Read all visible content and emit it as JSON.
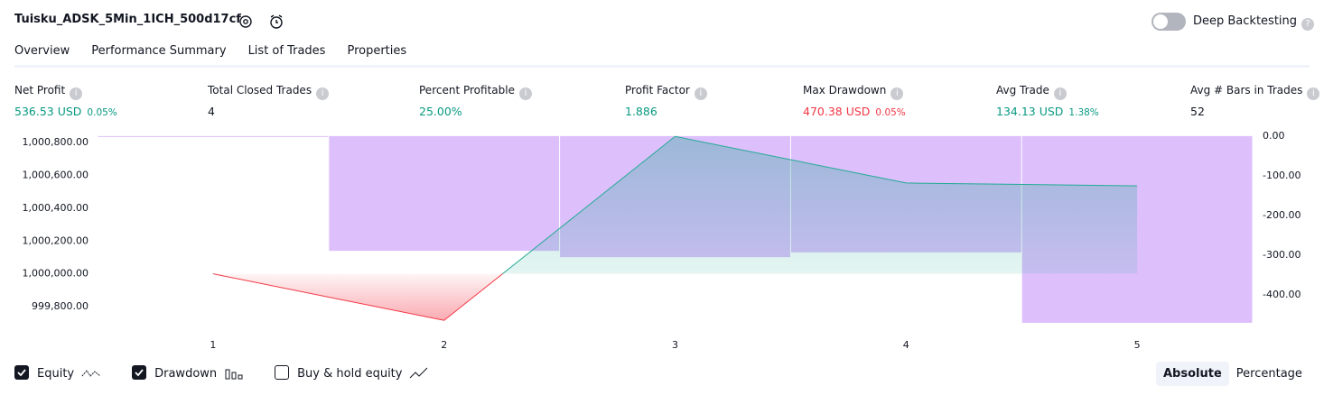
{
  "header": {
    "title": "Tuisku_ADSK_5Min_1ICH_500d17cf",
    "deep_backtesting": "Deep Backtesting",
    "deep_backtesting_on": false
  },
  "tabs": [
    "Overview",
    "Performance Summary",
    "List of Trades",
    "Properties"
  ],
  "active_tab": 0,
  "metrics": [
    {
      "label": "Net Profit",
      "value": "536.53 USD",
      "percent": "0.05%",
      "tone": "positive"
    },
    {
      "label": "Total Closed Trades",
      "value": "4",
      "tone": "neutral"
    },
    {
      "label": "Percent Profitable",
      "value": "25.00%",
      "tone": "positive"
    },
    {
      "label": "Profit Factor",
      "value": "1.886",
      "tone": "positive"
    },
    {
      "label": "Max Drawdown",
      "value": "470.38 USD",
      "percent": "0.05%",
      "tone": "negative"
    },
    {
      "label": "Avg Trade",
      "value": "134.13 USD",
      "percent": "1.38%",
      "tone": "positive"
    },
    {
      "label": "Avg # Bars in Trades",
      "value": "52",
      "tone": "neutral"
    }
  ],
  "chart_data": {
    "type": "combo",
    "categories": [
      "1",
      "2",
      "3",
      "4",
      "5"
    ],
    "series": [
      {
        "name": "Equity",
        "type": "line",
        "color": "#22ab94",
        "negative_color": "#f23645",
        "visible": true,
        "values": [
          1000000,
          999716,
          1000838,
          1000554,
          1000536.53
        ]
      },
      {
        "name": "Drawdown",
        "type": "bar",
        "axis": "y2",
        "color": "#d9b8fc",
        "visible": true,
        "values": [
          0,
          -289,
          -305,
          -293,
          -470.38
        ]
      }
    ],
    "buy_hold": {
      "name": "Buy & hold equity",
      "visible": false
    },
    "ylim": [
      999690,
      1000845
    ],
    "yticks": [
      {
        "value": 999800,
        "label": "999,800.00"
      },
      {
        "value": 1000000,
        "label": "1,000,000.00"
      },
      {
        "value": 1000200,
        "label": "1,000,200.00"
      },
      {
        "value": 1000400,
        "label": "1,000,400.00"
      },
      {
        "value": 1000600,
        "label": "1,000,600.00"
      },
      {
        "value": 1000800,
        "label": "1,000,800.00"
      }
    ],
    "y2lim": [
      -475,
      2
    ],
    "y2ticks": [
      {
        "value": 0,
        "label": "0.00"
      },
      {
        "value": -100,
        "label": "-100.00"
      },
      {
        "value": -200,
        "label": "-200.00"
      },
      {
        "value": -300,
        "label": "-300.00"
      },
      {
        "value": -400,
        "label": "-400.00"
      }
    ]
  },
  "modes": [
    "Absolute",
    "Percentage"
  ],
  "active_mode": 0
}
